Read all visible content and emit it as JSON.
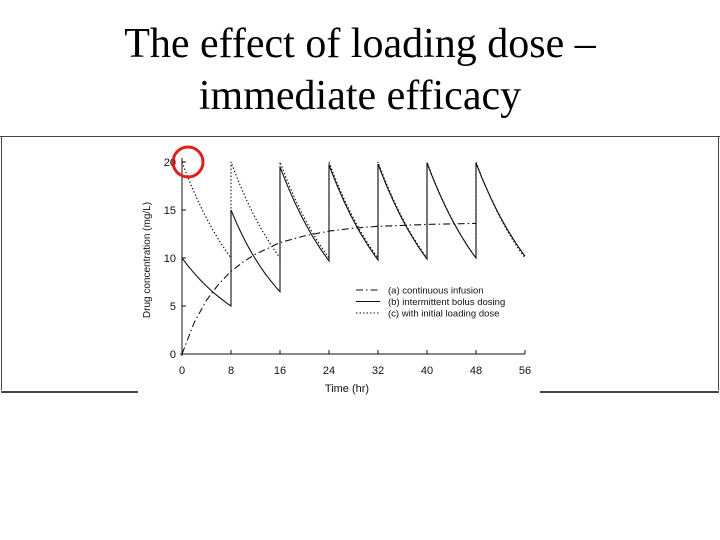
{
  "slide": {
    "title_line1": "The effect of loading dose –",
    "title_line2": "immediate efficacy"
  },
  "colors": {
    "highlight_circle": "#e0201b",
    "ink": "#111111",
    "frame": "#444444"
  },
  "chart_data": {
    "type": "line",
    "title": "",
    "xlabel": "Time (hr)",
    "ylabel": "Drug concentration (mg/L)",
    "xlim": [
      0,
      56
    ],
    "ylim": [
      0,
      20
    ],
    "x_ticks": [
      0,
      8,
      16,
      24,
      32,
      40,
      48,
      56
    ],
    "y_ticks": [
      0,
      5,
      10,
      15,
      20
    ],
    "legend": [
      "(a) continuous infusion",
      "(b) intermittent bolus dosing",
      "(c) with initial loading dose"
    ],
    "legend_position": "bottom-right",
    "series": [
      {
        "name": "(a) continuous infusion",
        "style": "dash-dot",
        "x": [
          0,
          2,
          4,
          6,
          8,
          10,
          12,
          16,
          20,
          24,
          28,
          32,
          36,
          40,
          44,
          48
        ],
        "y": [
          0,
          3.3,
          5.6,
          7.3,
          8.6,
          9.6,
          10.4,
          11.6,
          12.3,
          12.8,
          13.1,
          13.3,
          13.4,
          13.5,
          13.55,
          13.6
        ]
      },
      {
        "name": "(b) intermittent bolus dosing",
        "style": "solid",
        "note": "doses every 8 hr; starts at 10, reaches ~20 peaks",
        "x": [
          0,
          8,
          8,
          16,
          16,
          24,
          24,
          32,
          32,
          40,
          40,
          48,
          48,
          56
        ],
        "y": [
          10,
          5,
          15,
          6.5,
          19.5,
          9.7,
          19.7,
          9.8,
          19.8,
          9.9,
          19.9,
          10,
          19.9,
          10.2
        ]
      },
      {
        "name": "(c) with initial loading dose",
        "style": "dotted",
        "x": [
          0,
          8,
          8,
          16,
          16,
          24,
          24,
          32,
          32,
          40,
          40,
          48,
          48,
          56
        ],
        "y": [
          20,
          10,
          20,
          10,
          20,
          10,
          20,
          10,
          20,
          10,
          20,
          10,
          20,
          10
        ]
      }
    ],
    "annotation": "initial loading dose peak circled in red at t = 0"
  }
}
